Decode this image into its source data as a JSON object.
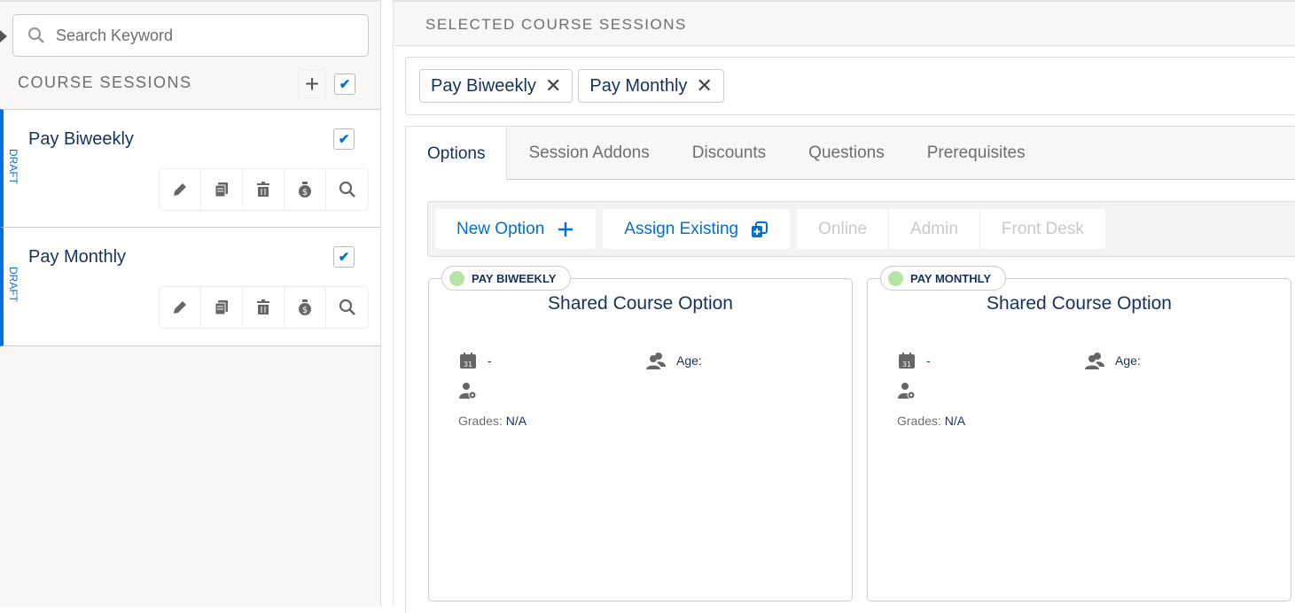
{
  "sidebar": {
    "search_placeholder": "Search Keyword",
    "section_title": "COURSE SESSIONS",
    "add_label": "+",
    "items": [
      {
        "name": "Pay Biweekly",
        "status": "DRAFT",
        "checked": true
      },
      {
        "name": "Pay Monthly",
        "status": "DRAFT",
        "checked": true
      }
    ]
  },
  "main": {
    "header": "SELECTED COURSE SESSIONS",
    "tags": [
      {
        "label": "Pay Biweekly"
      },
      {
        "label": "Pay Monthly"
      }
    ],
    "tag_remove": "✕",
    "tabs": [
      {
        "label": "Options"
      },
      {
        "label": "Session Addons"
      },
      {
        "label": "Discounts"
      },
      {
        "label": "Questions"
      },
      {
        "label": "Prerequisites"
      }
    ],
    "toolbar": {
      "new_option": "New Option",
      "assign_existing": "Assign Existing",
      "filters": [
        "Online",
        "Admin",
        "Front Desk"
      ]
    },
    "cards": [
      {
        "badge": "PAY BIWEEKLY",
        "title": "Shared Course Option",
        "date": "-",
        "age": "Age:",
        "grades_label": "Grades:",
        "grades_value": "N/A"
      },
      {
        "badge": "PAY MONTHLY",
        "title": "Shared Course Option",
        "date": "-",
        "age": "Age:",
        "grades_label": "Grades:",
        "grades_value": "N/A"
      }
    ]
  },
  "colors": {
    "accent": "#0070d2",
    "text": "#16325c",
    "status_dot": "#b7e3a4"
  }
}
